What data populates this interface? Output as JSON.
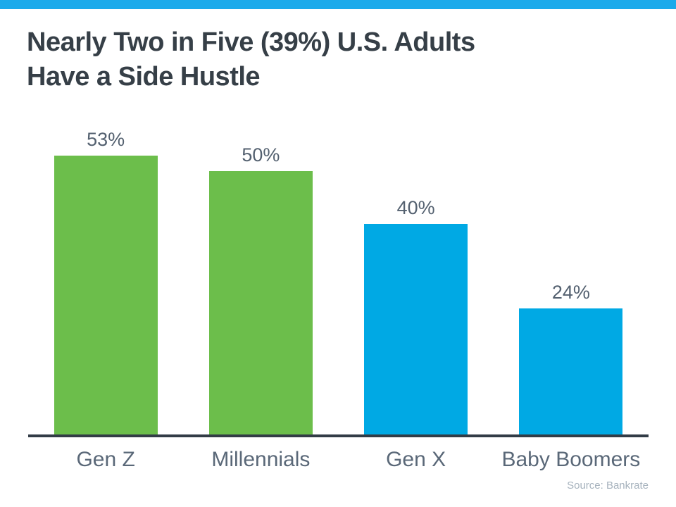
{
  "top_bar": {
    "color": "#1baaeb"
  },
  "title": {
    "line1": "Nearly Two in Five (39%) U.S. Adults",
    "line2": "Have a Side Hustle"
  },
  "chart_data": {
    "type": "bar",
    "title": "Nearly Two in Five (39%) U.S. Adults Have a Side Hustle",
    "categories": [
      "Gen Z",
      "Millennials",
      "Gen X",
      "Baby Boomers"
    ],
    "values": [
      53,
      50,
      40,
      24
    ],
    "value_labels": [
      "53%",
      "50%",
      "40%",
      "24%"
    ],
    "bar_colors": [
      "#6cbe4b",
      "#6cbe4b",
      "#00a9e4",
      "#00a9e4"
    ],
    "xlabel": "",
    "ylabel": "",
    "ylim": [
      0,
      56
    ],
    "grid": false,
    "legend": "none",
    "data_labels": "above-bars",
    "axis_line_color": "#323c46",
    "label_color": "#5a6878",
    "value_label_color": "#546170"
  },
  "source": {
    "text": "Source: Bankrate"
  }
}
